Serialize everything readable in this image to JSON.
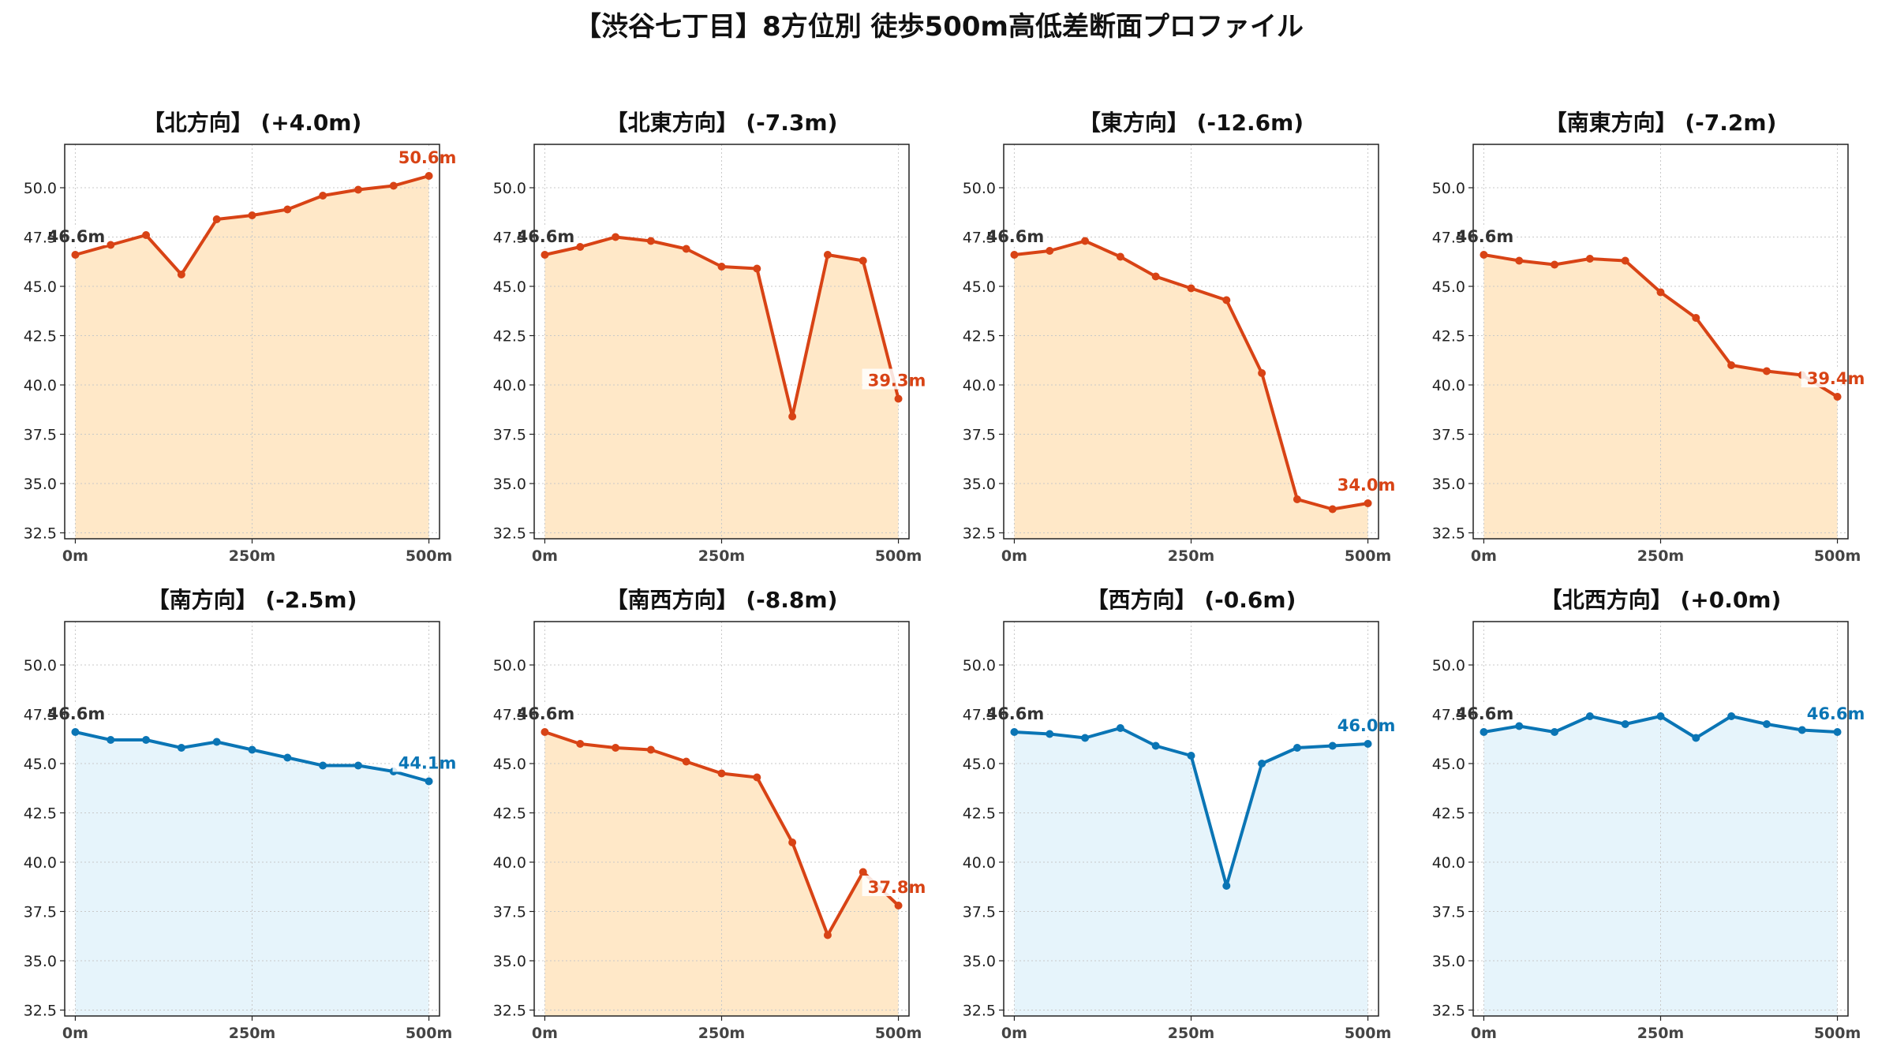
{
  "title": "【渋谷七丁目】8方位別 徒歩500m高低差断面プロファイル",
  "colors": {
    "up_line": "#d84315",
    "up_fill": "#ffe8c8",
    "down_line": "#0a75b5",
    "down_fill": "#e6f4fb",
    "start_label": "#333333"
  },
  "chart_data": [
    {
      "type": "area",
      "title": "【北方向】 (+4.0m)",
      "scheme": "orange",
      "x": [
        0,
        50,
        100,
        150,
        200,
        250,
        300,
        350,
        400,
        450,
        500
      ],
      "y": [
        46.6,
        47.1,
        47.6,
        45.6,
        48.4,
        48.6,
        48.9,
        49.6,
        49.9,
        50.1,
        50.6
      ],
      "start_label": "46.6m",
      "end_label": "50.6m"
    },
    {
      "type": "area",
      "title": "【北東方向】 (-7.3m)",
      "scheme": "orange",
      "x": [
        0,
        50,
        100,
        150,
        200,
        250,
        300,
        350,
        400,
        450,
        500
      ],
      "y": [
        46.6,
        47.0,
        47.5,
        47.3,
        46.9,
        46.0,
        45.9,
        38.4,
        46.6,
        46.3,
        39.3
      ],
      "start_label": "46.6m",
      "end_label": "39.3m"
    },
    {
      "type": "area",
      "title": "【東方向】 (-12.6m)",
      "scheme": "orange",
      "x": [
        0,
        50,
        100,
        150,
        200,
        250,
        300,
        350,
        400,
        450,
        500
      ],
      "y": [
        46.6,
        46.8,
        47.3,
        46.5,
        45.5,
        44.9,
        44.3,
        40.6,
        34.2,
        33.7,
        34.0
      ],
      "start_label": "46.6m",
      "end_label": "34.0m"
    },
    {
      "type": "area",
      "title": "【南東方向】 (-7.2m)",
      "scheme": "orange",
      "x": [
        0,
        50,
        100,
        150,
        200,
        250,
        300,
        350,
        400,
        450,
        500
      ],
      "y": [
        46.6,
        46.3,
        46.1,
        46.4,
        46.3,
        44.7,
        43.4,
        41.0,
        40.7,
        40.5,
        39.4
      ],
      "start_label": "46.6m",
      "end_label": "39.4m"
    },
    {
      "type": "area",
      "title": "【南方向】 (-2.5m)",
      "scheme": "blue",
      "x": [
        0,
        50,
        100,
        150,
        200,
        250,
        300,
        350,
        400,
        450,
        500
      ],
      "y": [
        46.6,
        46.2,
        46.2,
        45.8,
        46.1,
        45.7,
        45.3,
        44.9,
        44.9,
        44.6,
        44.1
      ],
      "start_label": "46.6m",
      "end_label": "44.1m"
    },
    {
      "type": "area",
      "title": "【南西方向】 (-8.8m)",
      "scheme": "orange",
      "x": [
        0,
        50,
        100,
        150,
        200,
        250,
        300,
        350,
        400,
        450,
        500
      ],
      "y": [
        46.6,
        46.0,
        45.8,
        45.7,
        45.1,
        44.5,
        44.3,
        41.0,
        36.3,
        39.5,
        37.8
      ],
      "start_label": "46.6m",
      "end_label": "37.8m"
    },
    {
      "type": "area",
      "title": "【西方向】 (-0.6m)",
      "scheme": "blue",
      "x": [
        0,
        50,
        100,
        150,
        200,
        250,
        300,
        350,
        400,
        450,
        500
      ],
      "y": [
        46.6,
        46.5,
        46.3,
        46.8,
        45.9,
        45.4,
        38.8,
        45.0,
        45.8,
        45.9,
        46.0
      ],
      "start_label": "46.6m",
      "end_label": "46.0m"
    },
    {
      "type": "area",
      "title": "【北西方向】 (+0.0m)",
      "scheme": "blue",
      "x": [
        0,
        50,
        100,
        150,
        200,
        250,
        300,
        350,
        400,
        450,
        500
      ],
      "y": [
        46.6,
        46.9,
        46.6,
        47.4,
        47.0,
        47.4,
        46.3,
        47.4,
        47.0,
        46.7,
        46.6
      ],
      "start_label": "46.6m",
      "end_label": "46.6m"
    }
  ],
  "y_ticks": [
    "32.5",
    "35.0",
    "37.5",
    "40.0",
    "42.5",
    "45.0",
    "47.5",
    "50.0"
  ],
  "x_ticks": [
    "0m",
    "250m",
    "500m"
  ],
  "ylim": [
    32.2,
    52.2
  ],
  "xlim": [
    -15,
    515
  ],
  "grid": true
}
